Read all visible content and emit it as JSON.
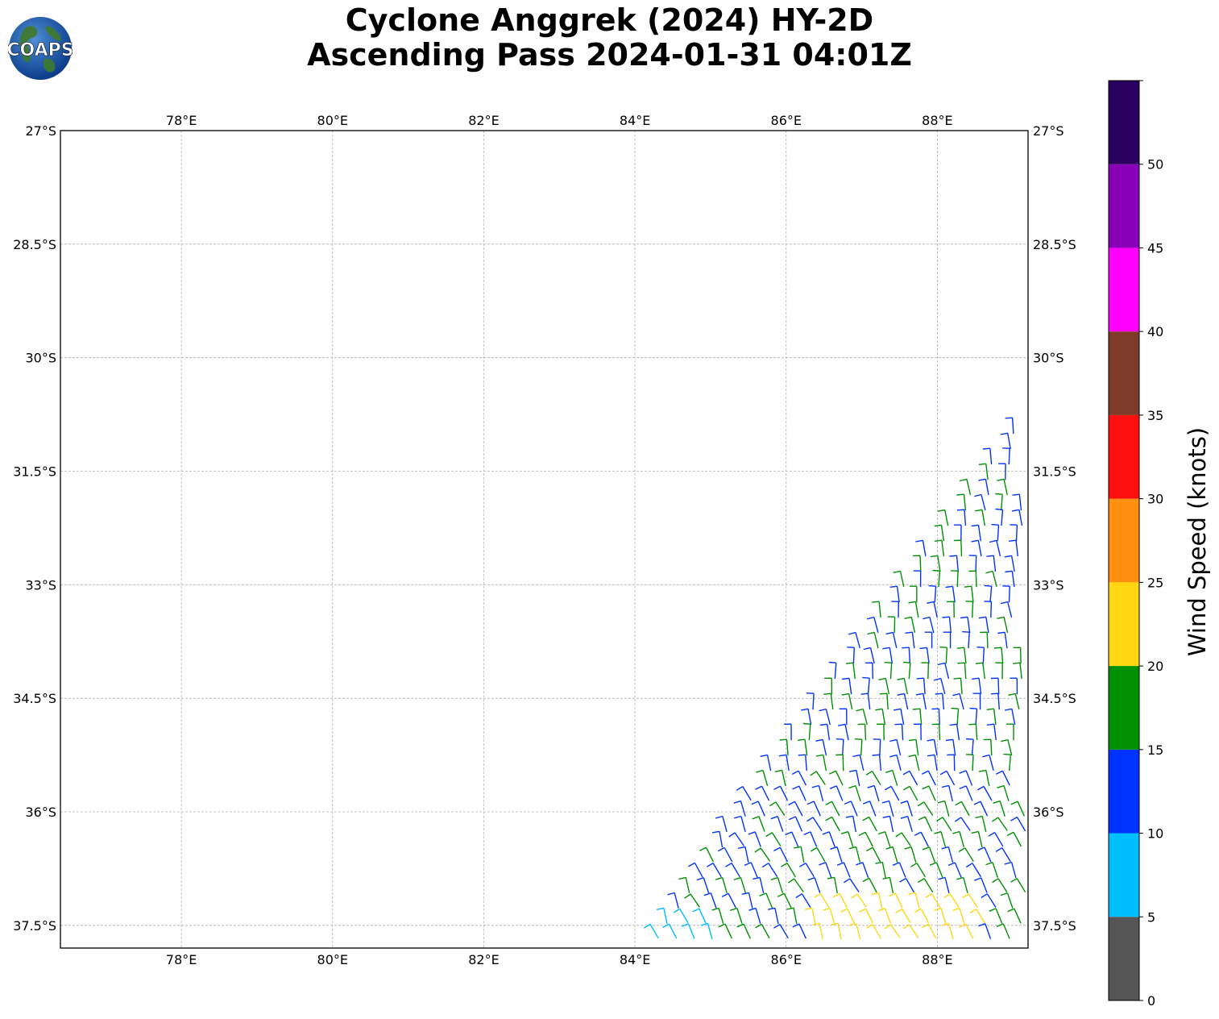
{
  "title": {
    "line1": "Cyclone Anggrek (2024) HY-2D",
    "line2": "Ascending Pass 2024-01-31 04:01Z"
  },
  "logo": {
    "text": "COAPS",
    "icon": "globe-logo-icon"
  },
  "map": {
    "lon_range": [
      76.4,
      89.2
    ],
    "lat_range": [
      -37.8,
      -27.0
    ],
    "lon_ticks": [
      "78°E",
      "80°E",
      "82°E",
      "84°E",
      "86°E",
      "88°E"
    ],
    "lon_tick_values": [
      78,
      80,
      82,
      84,
      86,
      88
    ],
    "lat_ticks": [
      "27°S",
      "28.5°S",
      "30°S",
      "31.5°S",
      "33°S",
      "34.5°S",
      "36°S",
      "37.5°S"
    ],
    "lat_tick_values": [
      -27,
      -28.5,
      -30,
      -31.5,
      -33,
      -34.5,
      -36,
      -37.5
    ],
    "grid": true,
    "swath_edge": [
      [
        89.0,
        -30.9
      ],
      [
        84.0,
        -37.8
      ]
    ],
    "wind_barbs": "dense swath of wind barbs in lower-right; mostly blue (10-15 kt) and green (15-20 kt), yellow (20-25 kt) near 86.5-88.5°E 37-38°S, light blue (5-10 kt) near 84-85°E 37.3-37.8°S"
  },
  "colorbar": {
    "label": "Wind Speed (knots)",
    "ticks": [
      "0",
      "5",
      "10",
      "15",
      "20",
      "25",
      "30",
      "35",
      "40",
      "45",
      "50"
    ],
    "bins": [
      {
        "from": 0,
        "to": 5,
        "color": "#555555"
      },
      {
        "from": 5,
        "to": 10,
        "color": "#00bfff"
      },
      {
        "from": 10,
        "to": 15,
        "color": "#0033ff"
      },
      {
        "from": 15,
        "to": 20,
        "color": "#009000"
      },
      {
        "from": 20,
        "to": 25,
        "color": "#ffd712"
      },
      {
        "from": 25,
        "to": 30,
        "color": "#ff9010"
      },
      {
        "from": 30,
        "to": 35,
        "color": "#ff1010"
      },
      {
        "from": 35,
        "to": 40,
        "color": "#7f3b2a"
      },
      {
        "from": 40,
        "to": 45,
        "color": "#ff00ff"
      },
      {
        "from": 45,
        "to": 50,
        "color": "#8a00b8"
      },
      {
        "from": 50,
        "to": 55,
        "color": "#2a0060"
      }
    ]
  }
}
